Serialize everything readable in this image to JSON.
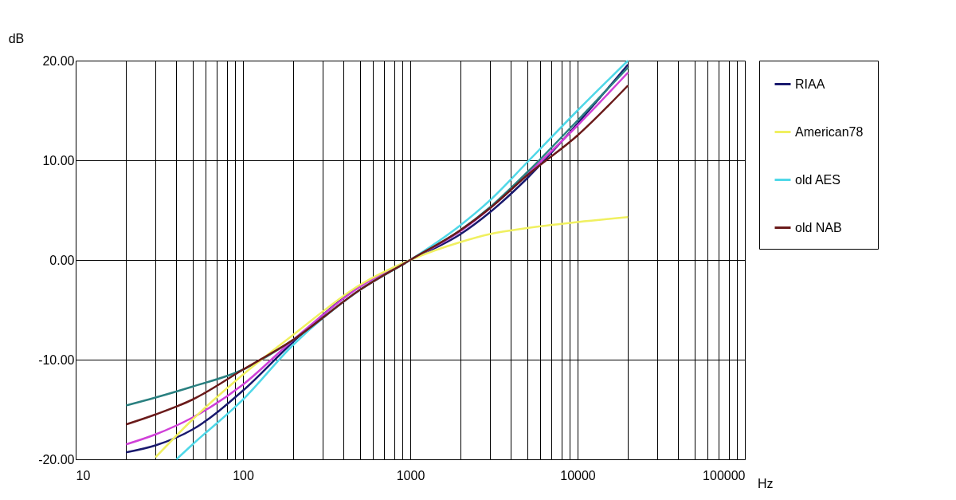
{
  "chart_data": {
    "type": "line",
    "xlabel": "Hz",
    "ylabel": "dB",
    "log": "x",
    "grid": true,
    "legend": "right",
    "marker": "none",
    "line_style": "solid",
    "xlim": [
      10,
      100000
    ],
    "ylim": [
      -20,
      20
    ],
    "xticks": [
      10,
      {
        "value": 20,
        "label": null
      },
      {
        "value": 30,
        "label": null
      },
      {
        "value": 40,
        "label": null
      },
      {
        "value": 50,
        "label": null
      },
      {
        "value": 60,
        "label": null
      },
      {
        "value": 70,
        "label": null
      },
      {
        "value": 80,
        "label": null
      },
      {
        "value": 90,
        "label": null
      },
      100,
      {
        "value": 200,
        "label": null
      },
      {
        "value": 300,
        "label": null
      },
      {
        "value": 400,
        "label": null
      },
      {
        "value": 500,
        "label": null
      },
      {
        "value": 600,
        "label": null
      },
      {
        "value": 700,
        "label": null
      },
      {
        "value": 800,
        "label": null
      },
      {
        "value": 900,
        "label": null
      },
      1000,
      {
        "value": 2000,
        "label": null
      },
      {
        "value": 3000,
        "label": null
      },
      {
        "value": 4000,
        "label": null
      },
      {
        "value": 5000,
        "label": null
      },
      {
        "value": 6000,
        "label": null
      },
      {
        "value": 7000,
        "label": null
      },
      {
        "value": 8000,
        "label": null
      },
      {
        "value": 9000,
        "label": null
      },
      10000,
      {
        "value": 20000,
        "label": null
      },
      {
        "value": 30000,
        "label": null
      },
      {
        "value": 40000,
        "label": null
      },
      {
        "value": 50000,
        "label": null
      },
      {
        "value": 60000,
        "label": null
      },
      {
        "value": 70000,
        "label": null
      },
      {
        "value": 80000,
        "label": null
      },
      {
        "value": 90000,
        "label": null
      },
      100000
    ],
    "yticks": [
      {
        "value": -20,
        "label": "-20.00"
      },
      {
        "value": -10,
        "label": "-10.00"
      },
      {
        "value": 0,
        "label": "0.00"
      },
      {
        "value": 10,
        "label": "10.00"
      },
      {
        "value": 20,
        "label": "20.00"
      }
    ],
    "x": [
      20,
      30,
      50,
      100,
      200,
      500,
      1000,
      2000,
      3000,
      5000,
      10000,
      20000
    ],
    "series": [
      {
        "name": "RIAA",
        "color": "#1a1a6e",
        "values": [
          -19.3,
          -18.6,
          -17.0,
          -13.1,
          -8.2,
          -2.6,
          0,
          2.6,
          4.8,
          8.2,
          13.7,
          19.6
        ]
      },
      {
        "color": "#d040d8",
        "values": [
          -18.5,
          -17.5,
          -15.8,
          -12.5,
          -8.0,
          -2.7,
          0,
          2.9,
          5.2,
          8.6,
          13.5,
          18.8
        ]
      },
      {
        "color": "#2a8080",
        "values": [
          -14.6,
          -13.8,
          -12.7,
          -11.0,
          -8.0,
          -3.0,
          0,
          3.0,
          5.3,
          8.8,
          14.0,
          19.3
        ]
      },
      {
        "name": "American78",
        "x": [
          30,
          50,
          100,
          200,
          500,
          1000,
          2000,
          3000,
          5000,
          10000,
          20000
        ],
        "color": "#f0f060",
        "values": [
          -19.8,
          -16.0,
          -11.5,
          -7.5,
          -2.5,
          0,
          1.8,
          2.6,
          3.2,
          3.8,
          4.3
        ]
      },
      {
        "name": "old AES",
        "x": [
          40,
          50,
          100,
          200,
          500,
          1000,
          2000,
          3000,
          5000,
          10000,
          20000
        ],
        "color": "#50d8e8",
        "values": [
          -20.0,
          -18.5,
          -14.0,
          -8.5,
          -3.0,
          0,
          3.5,
          6.0,
          9.8,
          15.0,
          20.0
        ]
      },
      {
        "name": "old NAB",
        "color": "#6a1a1a",
        "values": [
          -16.5,
          -15.5,
          -14.0,
          -11.0,
          -8.0,
          -3.0,
          0,
          3.0,
          5.2,
          8.5,
          12.5,
          17.5
        ]
      }
    ]
  }
}
